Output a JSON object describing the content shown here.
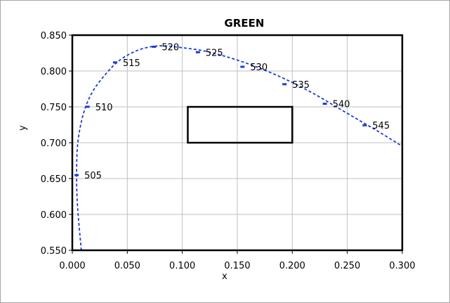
{
  "chart_data": {
    "type": "scatter",
    "title": "GREEN",
    "xlabel": "x",
    "ylabel": "y",
    "xlim": [
      0.0,
      0.3
    ],
    "ylim": [
      0.55,
      0.85
    ],
    "x_ticks": [
      "0.000",
      "0.050",
      "0.100",
      "0.150",
      "0.200",
      "0.250",
      "0.300"
    ],
    "y_ticks": [
      "0.550",
      "0.600",
      "0.650",
      "0.700",
      "0.750",
      "0.800",
      "0.850"
    ],
    "grid": true,
    "legend": "none",
    "colors": {
      "locus": "#1f3bd6",
      "region": "#000000",
      "grid": "#bfbfbf"
    },
    "spectral_locus": {
      "style": "dashed",
      "x": [
        0.0082,
        0.0048,
        0.0039,
        0.005,
        0.01,
        0.018,
        0.03,
        0.043,
        0.058,
        0.072,
        0.085,
        0.1,
        0.12,
        0.14,
        0.16,
        0.18,
        0.2,
        0.22,
        0.24,
        0.26,
        0.28,
        0.3
      ],
      "y": [
        0.55,
        0.61,
        0.655,
        0.7,
        0.74,
        0.77,
        0.795,
        0.815,
        0.828,
        0.834,
        0.835,
        0.8325,
        0.828,
        0.82,
        0.81,
        0.798,
        0.784,
        0.768,
        0.75,
        0.732,
        0.714,
        0.695
      ]
    },
    "wavelength_points": [
      {
        "label": "505",
        "x": 0.0039,
        "y": 0.6548
      },
      {
        "label": "510",
        "x": 0.0139,
        "y": 0.7502
      },
      {
        "label": "515",
        "x": 0.0389,
        "y": 0.812
      },
      {
        "label": "520",
        "x": 0.0743,
        "y": 0.8338
      },
      {
        "label": "525",
        "x": 0.1142,
        "y": 0.8262
      },
      {
        "label": "530",
        "x": 0.1547,
        "y": 0.8059
      },
      {
        "label": "535",
        "x": 0.1929,
        "y": 0.7816
      },
      {
        "label": "540",
        "x": 0.2296,
        "y": 0.7543
      },
      {
        "label": "545",
        "x": 0.2658,
        "y": 0.7243
      }
    ],
    "region": {
      "x_min": 0.105,
      "x_max": 0.2,
      "y_min": 0.7,
      "y_max": 0.75
    }
  }
}
